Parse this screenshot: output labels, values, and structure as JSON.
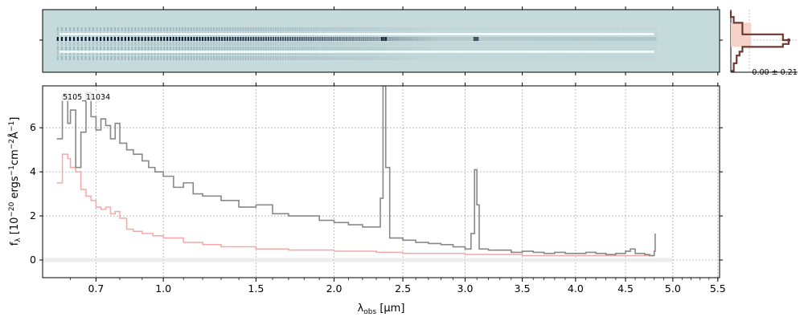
{
  "chart_data": [
    {
      "panel": "2d-spectrum",
      "type": "heatmap",
      "colors": {
        "background": "#c5dada",
        "dark": "#0b1a2e",
        "mid": "#5b7a8f"
      },
      "description_free": true
    },
    {
      "panel": "profile",
      "type": "line",
      "label": "-0.00 ± 0.21",
      "series": [
        {
          "name": "",
          "color": "#6b3a30",
          "x": [
            0.0,
            0.05,
            0.2,
            0.9,
            1.0,
            0.9,
            0.2,
            0.15,
            0.1,
            0.1,
            0.05,
            0.05,
            0.0
          ],
          "y": [
            -3.0,
            -2.4,
            -1.8,
            -0.6,
            0.0,
            0.4,
            0.7,
            1.2,
            1.6,
            2.0,
            2.4,
            2.8,
            3.2
          ]
        }
      ],
      "colors": {
        "line": "#6b3a30",
        "band": "#f7d2c8"
      }
    },
    {
      "panel": "1d-spectrum",
      "type": "line",
      "title": "",
      "label": "5105_11034",
      "xlabel_main": "λ",
      "xlabel_sub": "obs",
      "xlabel_unit": " [μm]",
      "ylabel": "f_λ [10^-20 ergs^-1cm^-2Å^-1]",
      "ylabel_parts": {
        "f": "f",
        "sub": "λ",
        "pre": " [10",
        "e1": "−20",
        "mid1": " ergs",
        "e2": "−1",
        "mid2": "cm",
        "e3": "−2",
        "mid3": "Å",
        "e4": "−1",
        "post": "]"
      },
      "xticks": [
        0.7,
        1.0,
        1.5,
        2.0,
        2.5,
        3.0,
        3.5,
        4.0,
        4.5,
        5.0,
        5.5
      ],
      "xtick_labels": [
        "0.7",
        "1.0",
        "1.5",
        "2.0",
        "2.5",
        "3.0",
        "3.5",
        "4.0",
        "4.5",
        "5.0",
        "5.5"
      ],
      "yticks": [
        0,
        2,
        4,
        6
      ],
      "ytick_labels": [
        "0",
        "2",
        "4",
        "6"
      ],
      "xlim": [
        0.5,
        5.52
      ],
      "ylim": [
        -0.8,
        7.9
      ],
      "grid": true,
      "series": [
        {
          "name": "",
          "color": "#888888",
          "x": [
            0.55,
            0.57,
            0.59,
            0.6,
            0.62,
            0.64,
            0.66,
            0.68,
            0.7,
            0.72,
            0.74,
            0.76,
            0.78,
            0.8,
            0.83,
            0.86,
            0.9,
            0.93,
            0.96,
            1.0,
            1.05,
            1.1,
            1.15,
            1.2,
            1.3,
            1.4,
            1.5,
            1.6,
            1.7,
            1.8,
            1.9,
            2.0,
            2.1,
            2.2,
            2.3,
            2.33,
            2.35,
            2.37,
            2.4,
            2.5,
            2.6,
            2.7,
            2.8,
            2.9,
            3.0,
            3.05,
            3.08,
            3.1,
            3.12,
            3.2,
            3.3,
            3.4,
            3.5,
            3.6,
            3.7,
            3.8,
            3.9,
            4.0,
            4.1,
            4.2,
            4.3,
            4.4,
            4.5,
            4.55,
            4.6,
            4.7,
            4.75,
            4.8,
            4.81
          ],
          "y": [
            5.5,
            7.5,
            6.2,
            6.8,
            4.2,
            5.8,
            7.6,
            6.5,
            5.9,
            6.4,
            6.1,
            5.5,
            6.2,
            5.3,
            5.0,
            4.8,
            4.5,
            4.2,
            4.0,
            3.8,
            3.3,
            3.5,
            3.0,
            2.9,
            2.7,
            2.4,
            2.5,
            2.1,
            2.0,
            2.0,
            1.8,
            1.7,
            1.6,
            1.5,
            1.5,
            2.8,
            7.9,
            4.2,
            1.0,
            0.9,
            0.8,
            0.75,
            0.7,
            0.6,
            0.5,
            1.2,
            4.1,
            2.5,
            0.5,
            0.45,
            0.45,
            0.35,
            0.4,
            0.35,
            0.3,
            0.35,
            0.3,
            0.3,
            0.35,
            0.3,
            0.25,
            0.3,
            0.4,
            0.5,
            0.3,
            0.25,
            0.2,
            0.4,
            1.2
          ]
        },
        {
          "name": "",
          "color": "#f4a8a8",
          "x": [
            0.55,
            0.57,
            0.59,
            0.6,
            0.62,
            0.64,
            0.66,
            0.68,
            0.7,
            0.72,
            0.74,
            0.76,
            0.78,
            0.8,
            0.83,
            0.86,
            0.9,
            0.95,
            1.0,
            1.1,
            1.2,
            1.3,
            1.5,
            1.7,
            2.0,
            2.3,
            2.5,
            3.0,
            3.5,
            4.0,
            4.5,
            4.8
          ],
          "y": [
            3.5,
            4.8,
            4.6,
            4.2,
            4.0,
            3.2,
            2.9,
            2.7,
            2.4,
            2.3,
            2.4,
            2.1,
            2.2,
            1.9,
            1.4,
            1.3,
            1.2,
            1.1,
            1.0,
            0.8,
            0.7,
            0.6,
            0.5,
            0.45,
            0.4,
            0.35,
            0.3,
            0.25,
            0.2,
            0.2,
            0.2,
            0.2
          ]
        }
      ],
      "zero_band": {
        "y0": -0.1,
        "y1": 0.1,
        "xmax": 5.0
      }
    }
  ]
}
